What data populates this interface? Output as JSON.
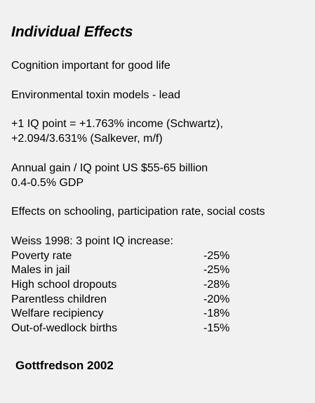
{
  "title": "Individual Effects",
  "paragraphs": [
    [
      "Cognition important for good life"
    ],
    [
      "Environmental toxin models - lead"
    ],
    [
      "+1 IQ point = +1.763% income (Schwartz),",
      "+2.094/3.631% (Salkever, m/f)"
    ],
    [
      "Annual gain / IQ point US $55-65 billion",
      "0.4-0.5% GDP"
    ],
    [
      "Effects on schooling, participation rate, social costs"
    ]
  ],
  "study": {
    "heading": "Weiss 1998: 3 point IQ increase:",
    "rows": [
      [
        "Poverty rate",
        "-25%"
      ],
      [
        "Males in jail",
        "-25%"
      ],
      [
        "High school dropouts",
        "-28%"
      ],
      [
        "Parentless children",
        "-20%"
      ],
      [
        "Welfare recipiency",
        "-18%"
      ],
      [
        "Out-of-wedlock births",
        "-15%"
      ]
    ]
  },
  "source": "Gottfredson 2002"
}
